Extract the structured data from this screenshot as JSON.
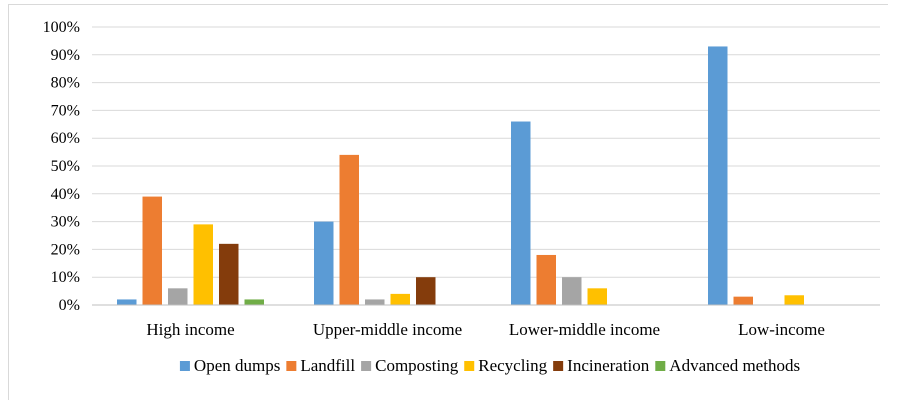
{
  "chart_data": {
    "type": "bar",
    "categories": [
      "High income",
      "Upper-middle income",
      "Lower-middle income",
      "Low-income"
    ],
    "series": [
      {
        "name": "Open dumps",
        "color": "#5B9BD5",
        "values": [
          2,
          30,
          66,
          93
        ]
      },
      {
        "name": "Landfill",
        "color": "#ED7D31",
        "values": [
          39,
          54,
          18,
          3
        ]
      },
      {
        "name": "Composting",
        "color": "#A5A5A5",
        "values": [
          6,
          2,
          10,
          0
        ]
      },
      {
        "name": "Recycling",
        "color": "#FFC000",
        "values": [
          29,
          4,
          6,
          3.5
        ]
      },
      {
        "name": "Incineration",
        "color": "#843C0C",
        "values": [
          22,
          10,
          0,
          0
        ]
      },
      {
        "name": "Advanced methods",
        "color": "#70AD47",
        "values": [
          2,
          0,
          0,
          0
        ]
      }
    ],
    "ylim": [
      0,
      100
    ],
    "yticks": [
      "0%",
      "10%",
      "20%",
      "30%",
      "40%",
      "50%",
      "60%",
      "70%",
      "80%",
      "90%",
      "100%"
    ],
    "title": "",
    "xlabel": "",
    "ylabel": "",
    "grid": true,
    "legend": "bottom"
  }
}
